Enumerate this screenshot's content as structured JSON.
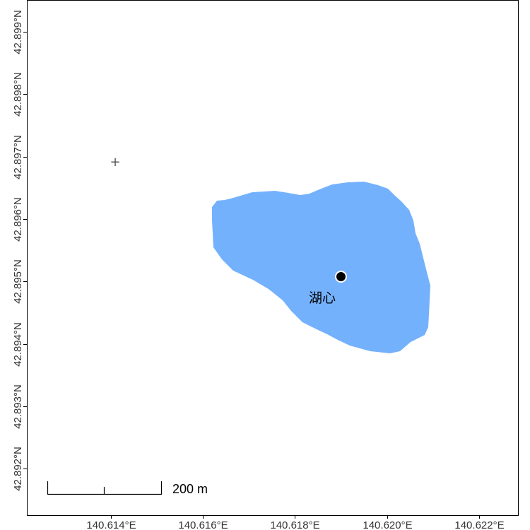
{
  "map": {
    "lake": {
      "name": "湖心",
      "fill_color": "#74b1fd",
      "marker_color": "#000000"
    },
    "scale_bar": {
      "label": "200 m"
    },
    "x_ticks": [
      "140.614°E",
      "140.616°E",
      "140.618°E",
      "140.620°E",
      "140.622°E"
    ],
    "y_ticks": [
      "42.892°N",
      "42.893°N",
      "42.894°N",
      "42.895°N",
      "42.896°N",
      "42.897°N",
      "42.898°N",
      "42.899°N"
    ],
    "extra_marker": {
      "symbol": "+"
    }
  }
}
